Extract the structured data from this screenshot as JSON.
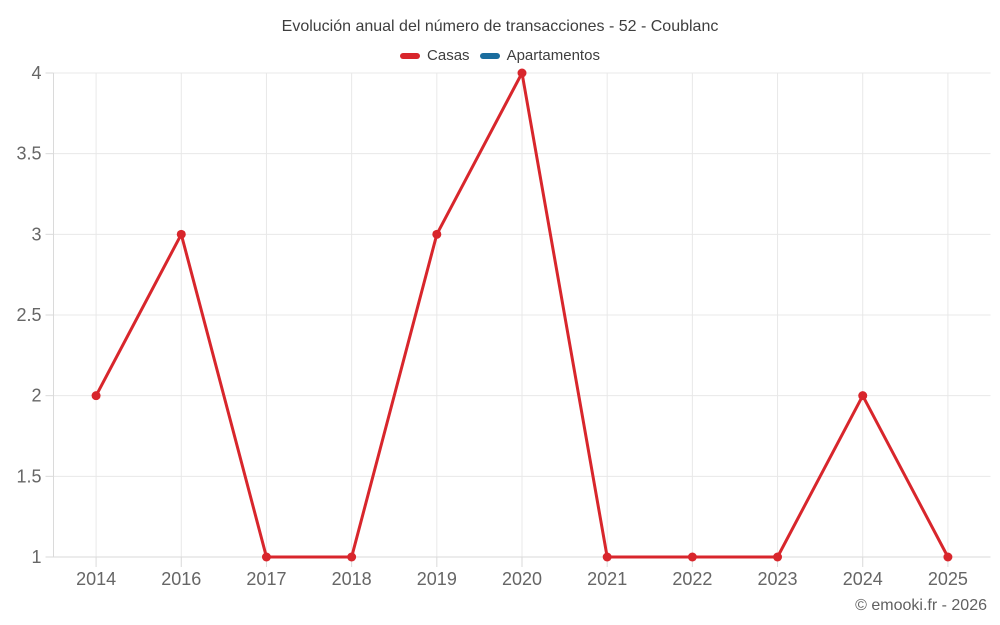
{
  "chart": {
    "title": "Evolución anual del número de transacciones - 52 - Coublanc",
    "attribution": "© emooki.fr - 2026"
  },
  "legend": {
    "items": [
      {
        "label": "Casas",
        "color": "#d8262c"
      },
      {
        "label": "Apartamentos",
        "color": "#1a6d9e"
      }
    ]
  },
  "chart_data": {
    "type": "line",
    "title": "Evolución anual del número de transacciones - 52 - Coublanc",
    "categories": [
      "2014",
      "2016",
      "2017",
      "2018",
      "2019",
      "2020",
      "2021",
      "2022",
      "2023",
      "2024",
      "2025"
    ],
    "series": [
      {
        "name": "Casas",
        "color": "#d8262c",
        "values": [
          2,
          3,
          1,
          1,
          3,
          4,
          1,
          1,
          1,
          2,
          1
        ]
      },
      {
        "name": "Apartamentos",
        "color": "#1a6d9e",
        "values": []
      }
    ],
    "xlabel": "",
    "ylabel": "",
    "ylim": [
      1,
      4
    ],
    "yticks": [
      1,
      1.5,
      2,
      2.5,
      3,
      3.5,
      4
    ],
    "grid": true,
    "legend_position": "top",
    "colors": {
      "grid": "#e8e8e8",
      "axis": "#dadada",
      "axis_text": "#666666",
      "title_text": "#3e3e3e"
    }
  }
}
